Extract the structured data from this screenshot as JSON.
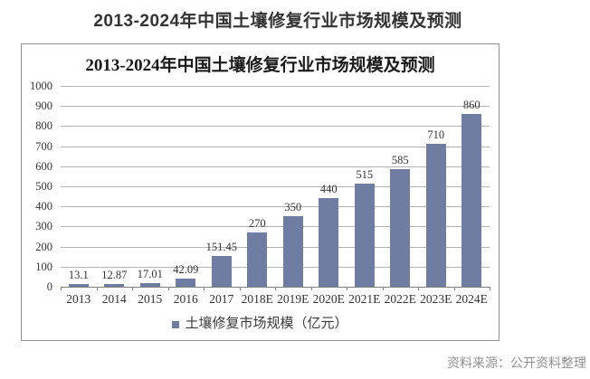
{
  "page": {
    "title": "2013-2024年中国土壤修复行业市场规模及预测"
  },
  "chart_data": {
    "type": "bar",
    "title": "2013-2024年中国土壤修复行业市场规模及预测",
    "categories": [
      "2013",
      "2014",
      "2015",
      "2016",
      "2017",
      "2018E",
      "2019E",
      "2020E",
      "2021E",
      "2022E",
      "2023E",
      "2024E"
    ],
    "values": [
      13.1,
      12.87,
      17.01,
      42.09,
      151.45,
      270,
      350,
      440,
      515,
      585,
      710,
      860
    ],
    "unit": "亿元",
    "legend": "土壤修复市场规模（亿元）",
    "xlabel": "",
    "ylabel": "",
    "ylim": [
      0,
      1000
    ],
    "ytick_step": 100,
    "grid": true,
    "legend_position": "bottom",
    "colors": {
      "bar": "#6e7da1",
      "gridline": "#b3b3b3",
      "axis": "#808080",
      "tick_label": "#333333",
      "value_label": "#333333"
    }
  },
  "footer": {
    "source": "资料来源：公开资料整理"
  }
}
